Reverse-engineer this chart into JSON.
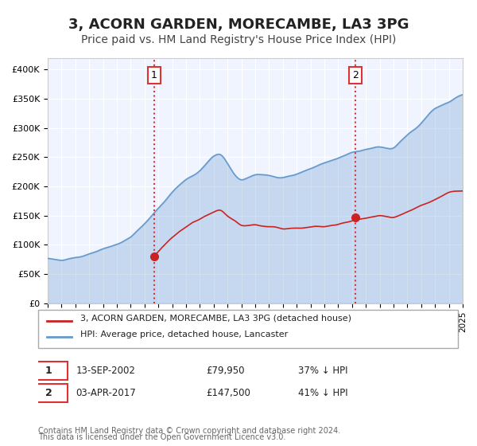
{
  "title": "3, ACORN GARDEN, MORECAMBE, LA3 3PG",
  "subtitle": "Price paid vs. HM Land Registry's House Price Index (HPI)",
  "title_fontsize": 13,
  "subtitle_fontsize": 10,
  "background_color": "#ffffff",
  "plot_bg_color": "#f0f4ff",
  "hpi_color": "#6699cc",
  "price_color": "#cc2222",
  "vline_color": "#dd3333",
  "ylim": [
    0,
    420000
  ],
  "ytick_labels": [
    "£0",
    "£50K",
    "£100K",
    "£150K",
    "£200K",
    "£250K",
    "£300K",
    "£350K",
    "£400K"
  ],
  "ytick_values": [
    0,
    50000,
    100000,
    150000,
    200000,
    250000,
    300000,
    350000,
    400000
  ],
  "transaction1_date": "13-SEP-2002",
  "transaction1_price": 79950,
  "transaction1_hpi_pct": "37% ↓ HPI",
  "transaction1_x": 2002.7,
  "transaction2_date": "03-APR-2017",
  "transaction2_price": 147500,
  "transaction2_hpi_pct": "41% ↓ HPI",
  "transaction2_x": 2017.25,
  "legend_label1": "3, ACORN GARDEN, MORECAMBE, LA3 3PG (detached house)",
  "legend_label2": "HPI: Average price, detached house, Lancaster",
  "footer1": "Contains HM Land Registry data © Crown copyright and database right 2024.",
  "footer2": "This data is licensed under the Open Government Licence v3.0.",
  "xmin": 1995,
  "xmax": 2025
}
